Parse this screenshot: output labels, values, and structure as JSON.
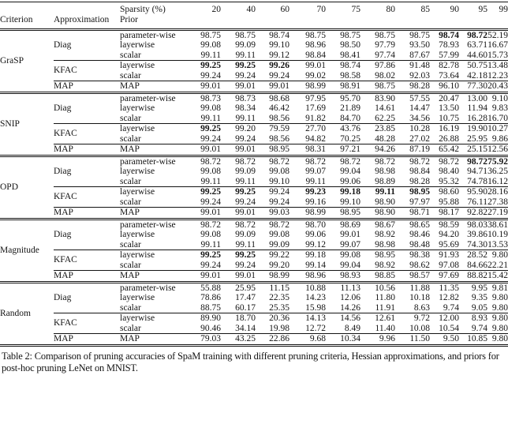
{
  "colors": {
    "text": "#141414",
    "background": "#ffffff",
    "rule": "#141414"
  },
  "caption": "Table 2: Comparison of pruning accuracies of SpaM training with different pruning criteria, Hessian approximations, and priors for post-hoc pruning LeNet on MNIST.",
  "table": {
    "header": {
      "criterion": "Criterion",
      "approximation": "Approximation",
      "sparsity": "Sparsity (%)",
      "prior": "Prior",
      "sparsity_levels": [
        "20",
        "40",
        "60",
        "70",
        "75",
        "80",
        "85",
        "90",
        "95",
        "99"
      ]
    },
    "sections": [
      {
        "criterion": "GraSP",
        "groups": [
          {
            "approximation": "Diag",
            "rows": [
              {
                "prior": "parameter-wise",
                "values": [
                  "98.75",
                  "98.75",
                  "98.74",
                  "98.75",
                  "98.75",
                  "98.75",
                  "98.75",
                  "98.74",
                  "98.72",
                  "52.19"
                ],
                "bold": [
                  7,
                  8
                ]
              },
              {
                "prior": "layerwise",
                "values": [
                  "99.08",
                  "99.09",
                  "99.10",
                  "98.96",
                  "98.50",
                  "97.79",
                  "93.50",
                  "78.93",
                  "63.71",
                  "16.67"
                ],
                "bold": []
              },
              {
                "prior": "scalar",
                "values": [
                  "99.11",
                  "99.11",
                  "99.12",
                  "98.84",
                  "98.41",
                  "97.74",
                  "87.67",
                  "57.99",
                  "44.60",
                  "15.73"
                ],
                "bold": []
              }
            ]
          },
          {
            "approximation": "KFAC",
            "rows": [
              {
                "prior": "layerwise",
                "values": [
                  "99.25",
                  "99.25",
                  "99.26",
                  "99.01",
                  "98.74",
                  "97.86",
                  "91.48",
                  "82.78",
                  "50.75",
                  "13.48"
                ],
                "bold": [
                  0,
                  1,
                  2
                ]
              },
              {
                "prior": "scalar",
                "values": [
                  "99.24",
                  "99.24",
                  "99.24",
                  "99.02",
                  "98.58",
                  "98.02",
                  "92.03",
                  "73.64",
                  "42.18",
                  "12.23"
                ],
                "bold": []
              }
            ]
          },
          {
            "approximation": "MAP",
            "rows": [
              {
                "prior": "MAP",
                "values": [
                  "99.01",
                  "99.01",
                  "99.01",
                  "98.99",
                  "98.91",
                  "98.75",
                  "98.28",
                  "96.10",
                  "77.30",
                  "20.43"
                ],
                "bold": []
              }
            ]
          }
        ]
      },
      {
        "criterion": "SNIP",
        "groups": [
          {
            "approximation": "Diag",
            "rows": [
              {
                "prior": "parameter-wise",
                "values": [
                  "98.73",
                  "98.73",
                  "98.68",
                  "97.95",
                  "95.70",
                  "83.90",
                  "57.55",
                  "20.47",
                  "13.00",
                  "9.10"
                ],
                "bold": []
              },
              {
                "prior": "layerwise",
                "values": [
                  "99.08",
                  "98.34",
                  "46.42",
                  "17.69",
                  "21.89",
                  "14.61",
                  "14.47",
                  "13.50",
                  "11.94",
                  "9.83"
                ],
                "bold": []
              },
              {
                "prior": "scalar",
                "values": [
                  "99.11",
                  "99.11",
                  "98.56",
                  "91.82",
                  "84.70",
                  "62.25",
                  "34.56",
                  "10.75",
                  "16.28",
                  "16.70"
                ],
                "bold": []
              }
            ]
          },
          {
            "approximation": "KFAC",
            "rows": [
              {
                "prior": "layerwise",
                "values": [
                  "99.25",
                  "99.20",
                  "79.59",
                  "27.70",
                  "43.76",
                  "23.85",
                  "10.28",
                  "16.19",
                  "19.90",
                  "10.27"
                ],
                "bold": [
                  0
                ]
              },
              {
                "prior": "scalar",
                "values": [
                  "99.24",
                  "99.24",
                  "98.56",
                  "94.82",
                  "70.25",
                  "48.28",
                  "27.02",
                  "26.88",
                  "25.95",
                  "9.86"
                ],
                "bold": []
              }
            ]
          },
          {
            "approximation": "MAP",
            "rows": [
              {
                "prior": "MAP",
                "values": [
                  "99.01",
                  "99.01",
                  "98.95",
                  "98.31",
                  "97.21",
                  "94.26",
                  "87.19",
                  "65.42",
                  "25.15",
                  "12.56"
                ],
                "bold": []
              }
            ]
          }
        ]
      },
      {
        "criterion": "OPD",
        "groups": [
          {
            "approximation": "Diag",
            "rows": [
              {
                "prior": "parameter-wise",
                "values": [
                  "98.72",
                  "98.72",
                  "98.72",
                  "98.72",
                  "98.72",
                  "98.72",
                  "98.72",
                  "98.72",
                  "98.72",
                  "75.92"
                ],
                "bold": [
                  8,
                  9
                ]
              },
              {
                "prior": "layerwise",
                "values": [
                  "99.08",
                  "99.09",
                  "99.08",
                  "99.07",
                  "99.04",
                  "98.98",
                  "98.84",
                  "98.40",
                  "94.71",
                  "36.25"
                ],
                "bold": []
              },
              {
                "prior": "scalar",
                "values": [
                  "99.11",
                  "99.11",
                  "99.10",
                  "99.11",
                  "99.06",
                  "98.89",
                  "98.28",
                  "95.32",
                  "74.78",
                  "16.12"
                ],
                "bold": []
              }
            ]
          },
          {
            "approximation": "KFAC",
            "rows": [
              {
                "prior": "layerwise",
                "values": [
                  "99.25",
                  "99.25",
                  "99.24",
                  "99.23",
                  "99.18",
                  "99.11",
                  "98.95",
                  "98.60",
                  "95.90",
                  "28.16"
                ],
                "bold": [
                  0,
                  1,
                  3,
                  4,
                  5,
                  6
                ]
              },
              {
                "prior": "scalar",
                "values": [
                  "99.24",
                  "99.24",
                  "99.24",
                  "99.16",
                  "99.10",
                  "98.90",
                  "97.97",
                  "95.88",
                  "76.11",
                  "27.38"
                ],
                "bold": []
              }
            ]
          },
          {
            "approximation": "MAP",
            "rows": [
              {
                "prior": "MAP",
                "values": [
                  "99.01",
                  "99.01",
                  "99.03",
                  "98.99",
                  "98.95",
                  "98.90",
                  "98.71",
                  "98.17",
                  "92.82",
                  "27.19"
                ],
                "bold": []
              }
            ]
          }
        ]
      },
      {
        "criterion": "Magnitude",
        "groups": [
          {
            "approximation": "Diag",
            "rows": [
              {
                "prior": "parameter-wise",
                "values": [
                  "98.72",
                  "98.72",
                  "98.72",
                  "98.70",
                  "98.69",
                  "98.67",
                  "98.65",
                  "98.59",
                  "98.03",
                  "38.61"
                ],
                "bold": []
              },
              {
                "prior": "layerwise",
                "values": [
                  "99.08",
                  "99.09",
                  "99.08",
                  "99.06",
                  "99.01",
                  "98.92",
                  "98.46",
                  "94.20",
                  "39.86",
                  "10.19"
                ],
                "bold": []
              },
              {
                "prior": "scalar",
                "values": [
                  "99.11",
                  "99.11",
                  "99.09",
                  "99.12",
                  "99.07",
                  "98.98",
                  "98.48",
                  "95.69",
                  "74.30",
                  "13.53"
                ],
                "bold": []
              }
            ]
          },
          {
            "approximation": "KFAC",
            "rows": [
              {
                "prior": "layerwise",
                "values": [
                  "99.25",
                  "99.25",
                  "99.22",
                  "99.18",
                  "99.08",
                  "98.95",
                  "98.38",
                  "91.93",
                  "28.52",
                  "9.80"
                ],
                "bold": [
                  0,
                  1
                ]
              },
              {
                "prior": "scalar",
                "values": [
                  "99.24",
                  "99.24",
                  "99.20",
                  "99.14",
                  "99.04",
                  "98.92",
                  "98.62",
                  "97.08",
                  "84.66",
                  "22.21"
                ],
                "bold": []
              }
            ]
          },
          {
            "approximation": "MAP",
            "rows": [
              {
                "prior": "MAP",
                "values": [
                  "99.01",
                  "99.01",
                  "98.99",
                  "98.96",
                  "98.93",
                  "98.85",
                  "98.57",
                  "97.69",
                  "88.82",
                  "15.42"
                ],
                "bold": []
              }
            ]
          }
        ]
      },
      {
        "criterion": "Random",
        "groups": [
          {
            "approximation": "Diag",
            "rows": [
              {
                "prior": "parameter-wise",
                "values": [
                  "55.88",
                  "25.95",
                  "11.15",
                  "10.88",
                  "11.13",
                  "10.56",
                  "11.88",
                  "11.35",
                  "9.95",
                  "9.81"
                ],
                "bold": []
              },
              {
                "prior": "layerwise",
                "values": [
                  "78.86",
                  "17.47",
                  "22.35",
                  "14.23",
                  "12.06",
                  "11.80",
                  "10.18",
                  "12.82",
                  "9.35",
                  "9.80"
                ],
                "bold": []
              },
              {
                "prior": "scalar",
                "values": [
                  "88.75",
                  "60.17",
                  "25.35",
                  "15.98",
                  "14.26",
                  "11.91",
                  "8.63",
                  "9.74",
                  "9.05",
                  "9.80"
                ],
                "bold": []
              }
            ]
          },
          {
            "approximation": "KFAC",
            "rows": [
              {
                "prior": "layerwise",
                "values": [
                  "89.90",
                  "18.70",
                  "20.36",
                  "14.13",
                  "14.56",
                  "12.61",
                  "9.72",
                  "12.00",
                  "8.93",
                  "9.80"
                ],
                "bold": []
              },
              {
                "prior": "scalar",
                "values": [
                  "90.46",
                  "34.14",
                  "19.98",
                  "12.72",
                  "8.49",
                  "11.40",
                  "10.08",
                  "10.54",
                  "9.74",
                  "9.80"
                ],
                "bold": []
              }
            ]
          },
          {
            "approximation": "MAP",
            "rows": [
              {
                "prior": "MAP",
                "values": [
                  "79.03",
                  "43.25",
                  "22.86",
                  "9.68",
                  "10.34",
                  "9.96",
                  "11.50",
                  "9.50",
                  "10.85",
                  "9.80"
                ],
                "bold": []
              }
            ]
          }
        ]
      }
    ]
  }
}
